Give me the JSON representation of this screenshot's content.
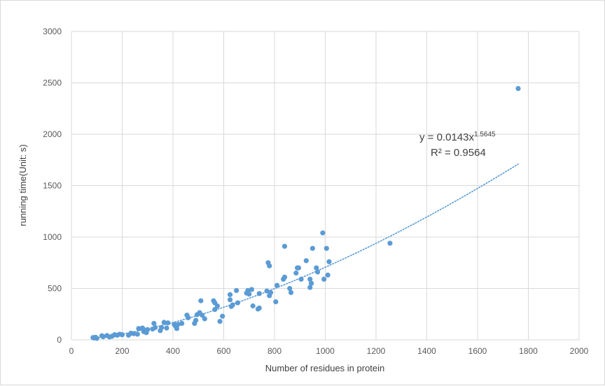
{
  "chart_data": {
    "type": "scatter",
    "title": "",
    "xlabel": "Number  of residues in protein",
    "ylabel": "running time(Unit: s)",
    "xlim": [
      0,
      2000
    ],
    "ylim": [
      0,
      3000
    ],
    "x_ticks": [
      0,
      200,
      400,
      600,
      800,
      1000,
      1200,
      1400,
      1600,
      1800,
      2000
    ],
    "y_ticks": [
      0,
      500,
      1000,
      1500,
      2000,
      2500,
      3000
    ],
    "grid": true,
    "legend": "none",
    "marker_color": "#5b9bd5",
    "trendline": {
      "type": "power",
      "coefficient": 0.0143,
      "exponent": 1.5645,
      "x_range": [
        95,
        1760
      ],
      "color": "#5b9bd5",
      "style": "dotted",
      "equation_prefix": "y = 0.0143x",
      "equation_exponent": "1.5645",
      "r_squared_label": "R² = 0.9564"
    },
    "points": [
      [
        85,
        22
      ],
      [
        90,
        18
      ],
      [
        95,
        25
      ],
      [
        100,
        15
      ],
      [
        120,
        40
      ],
      [
        125,
        30
      ],
      [
        140,
        42
      ],
      [
        150,
        28
      ],
      [
        160,
        35
      ],
      [
        170,
        50
      ],
      [
        180,
        45
      ],
      [
        190,
        55
      ],
      [
        200,
        50
      ],
      [
        225,
        45
      ],
      [
        235,
        65
      ],
      [
        245,
        60
      ],
      [
        260,
        55
      ],
      [
        265,
        110
      ],
      [
        280,
        115
      ],
      [
        285,
        80
      ],
      [
        290,
        95
      ],
      [
        295,
        70
      ],
      [
        300,
        100
      ],
      [
        320,
        105
      ],
      [
        325,
        160
      ],
      [
        330,
        120
      ],
      [
        350,
        90
      ],
      [
        355,
        120
      ],
      [
        365,
        170
      ],
      [
        375,
        115
      ],
      [
        380,
        165
      ],
      [
        405,
        150
      ],
      [
        410,
        135
      ],
      [
        415,
        110
      ],
      [
        420,
        150
      ],
      [
        435,
        160
      ],
      [
        455,
        240
      ],
      [
        460,
        215
      ],
      [
        485,
        160
      ],
      [
        490,
        190
      ],
      [
        495,
        245
      ],
      [
        505,
        265
      ],
      [
        510,
        380
      ],
      [
        515,
        240
      ],
      [
        525,
        205
      ],
      [
        560,
        380
      ],
      [
        565,
        360
      ],
      [
        565,
        295
      ],
      [
        575,
        330
      ],
      [
        585,
        180
      ],
      [
        595,
        230
      ],
      [
        625,
        440
      ],
      [
        625,
        390
      ],
      [
        630,
        325
      ],
      [
        635,
        340
      ],
      [
        650,
        480
      ],
      [
        655,
        360
      ],
      [
        690,
        455
      ],
      [
        695,
        480
      ],
      [
        700,
        445
      ],
      [
        710,
        490
      ],
      [
        715,
        330
      ],
      [
        735,
        300
      ],
      [
        740,
        310
      ],
      [
        740,
        450
      ],
      [
        770,
        475
      ],
      [
        775,
        750
      ],
      [
        780,
        720
      ],
      [
        780,
        430
      ],
      [
        785,
        460
      ],
      [
        805,
        370
      ],
      [
        810,
        530
      ],
      [
        835,
        590
      ],
      [
        840,
        610
      ],
      [
        840,
        910
      ],
      [
        860,
        500
      ],
      [
        865,
        460
      ],
      [
        885,
        650
      ],
      [
        890,
        700
      ],
      [
        895,
        700
      ],
      [
        905,
        590
      ],
      [
        925,
        770
      ],
      [
        940,
        590
      ],
      [
        940,
        510
      ],
      [
        945,
        550
      ],
      [
        950,
        890
      ],
      [
        965,
        700
      ],
      [
        970,
        660
      ],
      [
        990,
        1040
      ],
      [
        995,
        590
      ],
      [
        1005,
        890
      ],
      [
        1010,
        630
      ],
      [
        1015,
        760
      ],
      [
        1255,
        940
      ],
      [
        1760,
        2445
      ]
    ]
  }
}
